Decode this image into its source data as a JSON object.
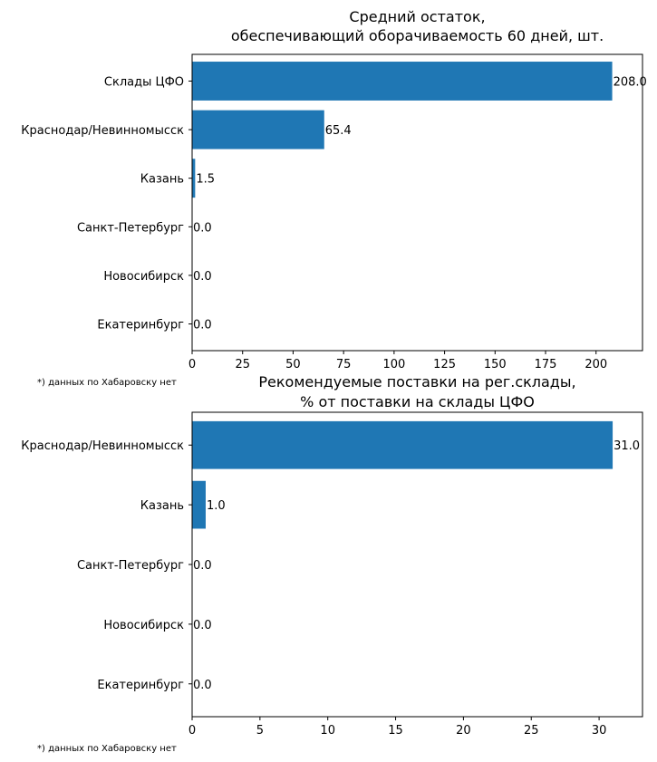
{
  "colors": {
    "bar": "#1f77b4"
  },
  "chart_data": [
    {
      "type": "bar",
      "orientation": "horizontal",
      "title": [
        "Средний остаток,",
        "обеспечивающий оборачиваемость 60 дней, шт."
      ],
      "categories": [
        "Склады ЦФО",
        "Краснодар/Невинномысск",
        "Казань",
        "Санкт-Петербург",
        "Новосибирск",
        "Екатеринбург"
      ],
      "values": [
        208.0,
        65.4,
        1.5,
        0.0,
        0.0,
        0.0
      ],
      "value_labels": [
        "208.0",
        "65.4",
        "1.5",
        "0.0",
        "0.0",
        "0.0"
      ],
      "xlim": [
        0,
        223
      ],
      "xticks": [
        0,
        25,
        50,
        75,
        100,
        125,
        150,
        175,
        200
      ],
      "xlabel": "",
      "ylabel": "",
      "grid": false,
      "footnote": "*) данных по Хабаровску нет"
    },
    {
      "type": "bar",
      "orientation": "horizontal",
      "title": [
        "Рекомендуемые поставки на рег.склады,",
        "% от поставки на склады ЦФО"
      ],
      "categories": [
        "Краснодар/Невинномысск",
        "Казань",
        "Санкт-Петербург",
        "Новосибирск",
        "Екатеринбург"
      ],
      "values": [
        31.0,
        1.0,
        0.0,
        0.0,
        0.0
      ],
      "value_labels": [
        "31.0",
        "1.0",
        "0.0",
        "0.0",
        "0.0"
      ],
      "xlim": [
        0,
        33.2
      ],
      "xticks": [
        0,
        5,
        10,
        15,
        20,
        25,
        30
      ],
      "xlabel": "",
      "ylabel": "",
      "grid": false,
      "footnote": "*) данных по Хабаровску нет"
    }
  ]
}
